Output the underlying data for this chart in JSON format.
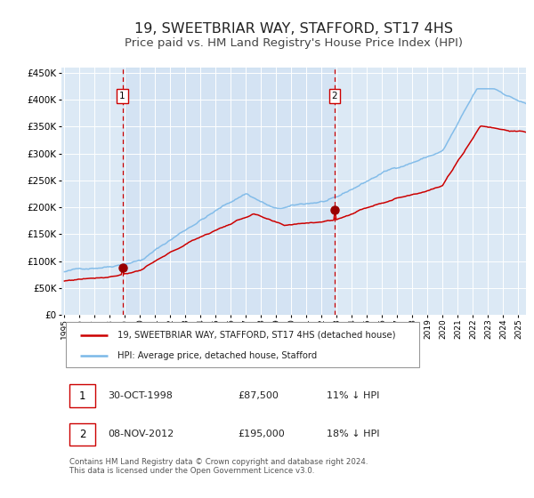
{
  "title": "19, SWEETBRIAR WAY, STAFFORD, ST17 4HS",
  "subtitle": "Price paid vs. HM Land Registry's House Price Index (HPI)",
  "title_fontsize": 11.5,
  "subtitle_fontsize": 9.5,
  "background_color": "#ffffff",
  "plot_bg_color": "#dce9f5",
  "grid_color": "#ffffff",
  "hpi_color": "#7ab8e8",
  "price_color": "#cc0000",
  "sale1_date": 1998.83,
  "sale1_price": 87500,
  "sale2_date": 2012.85,
  "sale2_price": 195000,
  "vline_color": "#cc0000",
  "marker_color": "#990000",
  "legend_label_price": "19, SWEETBRIAR WAY, STAFFORD, ST17 4HS (detached house)",
  "legend_label_hpi": "HPI: Average price, detached house, Stafford",
  "sale1_info": "30-OCT-1998",
  "sale1_amount": "£87,500",
  "sale1_pct": "11% ↓ HPI",
  "sale2_info": "08-NOV-2012",
  "sale2_amount": "£195,000",
  "sale2_pct": "18% ↓ HPI",
  "footer": "Contains HM Land Registry data © Crown copyright and database right 2024.\nThis data is licensed under the Open Government Licence v3.0.",
  "ylim": [
    0,
    460000
  ],
  "yticks": [
    0,
    50000,
    100000,
    150000,
    200000,
    250000,
    300000,
    350000,
    400000,
    450000
  ],
  "xstart": 1994.8,
  "xend": 2025.5
}
